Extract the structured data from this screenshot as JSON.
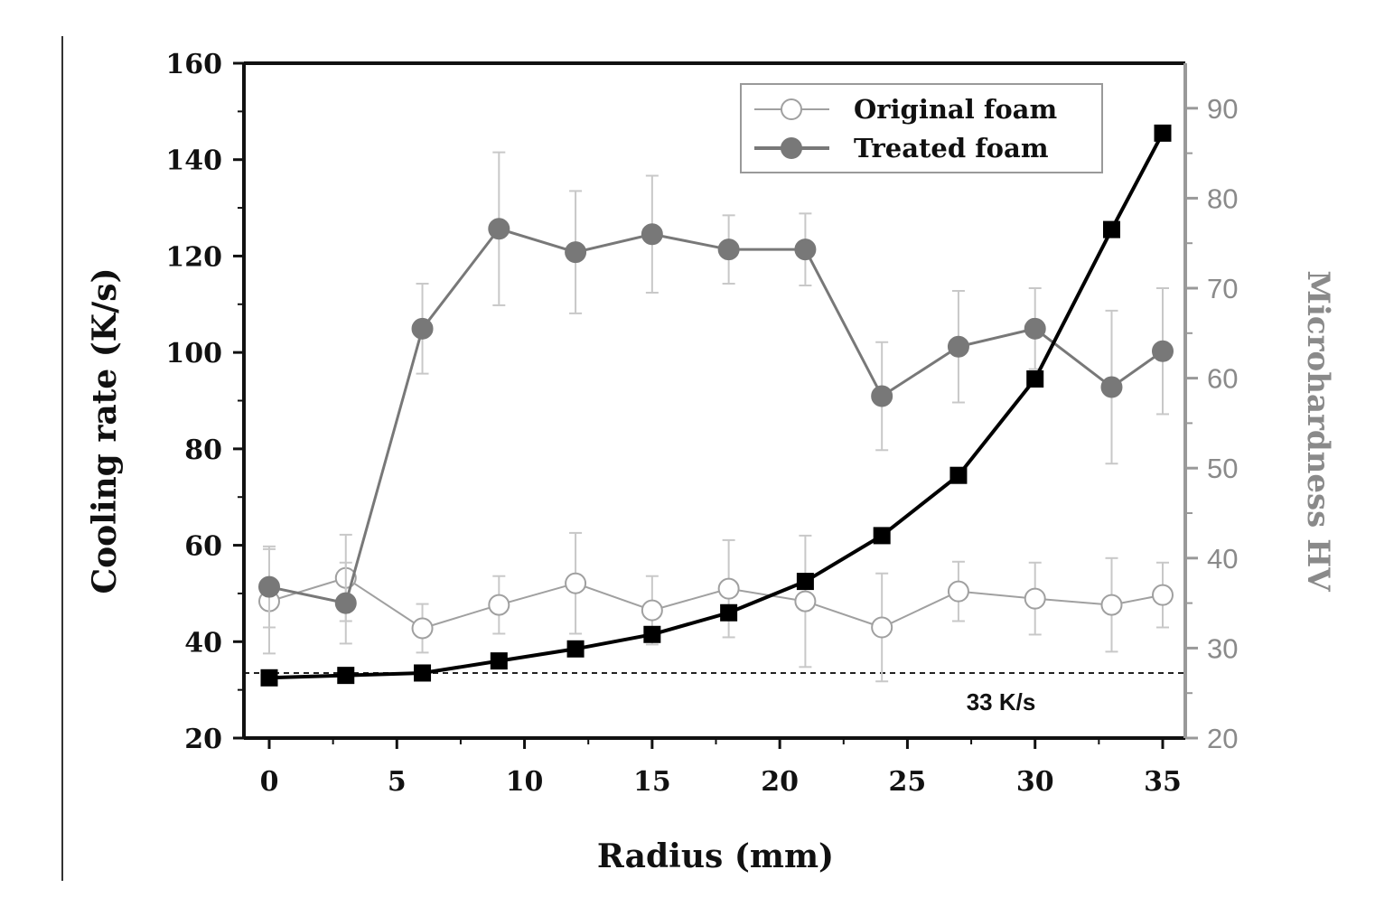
{
  "chart_data": {
    "type": "line",
    "title": "",
    "xlabel": "Radius (mm)",
    "ylabel": "Cooling rate (K/s)",
    "y2label": "Microhardness HV",
    "xlim": [
      -1,
      36
    ],
    "ylim": [
      20,
      160
    ],
    "y2lim": [
      20,
      95
    ],
    "x_ticks": [
      "0",
      "5",
      "10",
      "15",
      "20",
      "25",
      "30",
      "35"
    ],
    "y_ticks": [
      "20",
      "40",
      "60",
      "80",
      "100",
      "120",
      "140",
      "160"
    ],
    "y2_ticks": [
      "20",
      "30",
      "40",
      "50",
      "60",
      "70",
      "80",
      "90"
    ],
    "grid": false,
    "legend_position": "top-right",
    "annotation": {
      "text": "33 K/s",
      "y": 33.5
    },
    "series": [
      {
        "axis": "left",
        "color": "#000000",
        "marker": "square",
        "x": [
          0,
          3,
          6,
          9,
          12,
          15,
          18,
          21,
          24,
          27,
          30,
          33,
          35
        ],
        "values": [
          32.5,
          33,
          33.5,
          36,
          38.5,
          41.5,
          46,
          52.5,
          62,
          74.5,
          94.5,
          125.5,
          145.5
        ]
      },
      {
        "name": "Original foam",
        "axis": "right",
        "color": "#a0a0a0",
        "marker": "open-circle",
        "x": [
          0,
          3,
          6,
          9,
          12,
          15,
          18,
          21,
          24,
          27,
          30,
          33,
          35
        ],
        "values": [
          35.2,
          37.8,
          32.2,
          34.8,
          37.2,
          34.2,
          36.6,
          35.2,
          32.3,
          36.3,
          35.5,
          34.8,
          35.9
        ],
        "err": [
          5.8,
          4.8,
          2.7,
          3.2,
          5.6,
          3.8,
          5.4,
          7.3,
          6.0,
          3.3,
          4.0,
          5.2,
          3.6
        ]
      },
      {
        "name": "Treated foam",
        "axis": "right",
        "color": "#787878",
        "marker": "filled-circle",
        "x": [
          0,
          3,
          6,
          9,
          12,
          15,
          18,
          21,
          24,
          27,
          30,
          33,
          35
        ],
        "values": [
          36.8,
          35.0,
          65.5,
          76.6,
          74.0,
          76.0,
          74.3,
          74.3,
          58.0,
          63.5,
          65.5,
          59.0,
          63.0
        ],
        "err": [
          4.5,
          4.5,
          5.0,
          8.5,
          6.8,
          6.5,
          3.8,
          4.0,
          6.0,
          6.2,
          4.5,
          8.5,
          7.0
        ]
      }
    ]
  }
}
